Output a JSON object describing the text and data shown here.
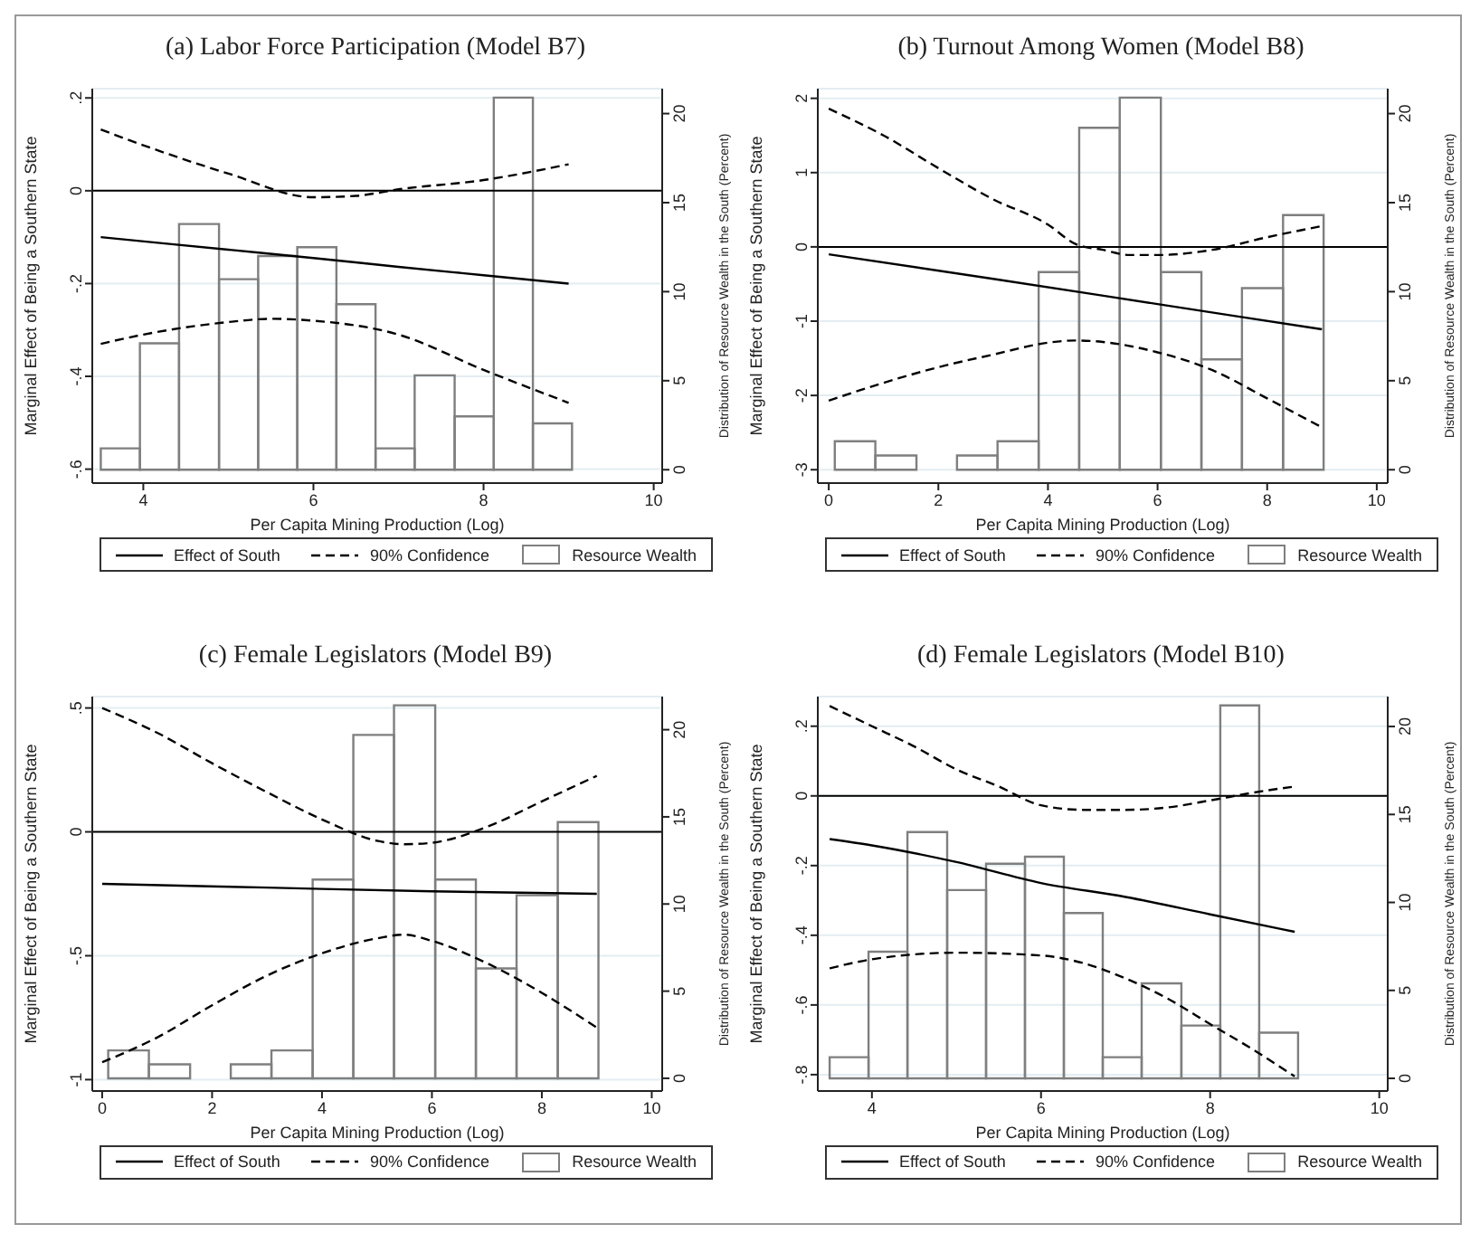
{
  "chart_data": [
    {
      "type": "line",
      "title": "(a) Labor Force Participation (Model B7)",
      "xlabel": "Per Capita Mining Production (Log)",
      "ylabel": "Marginal Effect of Being a Southern State",
      "y2label": "Distribution of Resource Wealth in the South (Percent)",
      "xlim": [
        3.4,
        10.1
      ],
      "xticks": [
        4,
        6,
        8,
        10
      ],
      "ylim": [
        -0.63,
        0.22
      ],
      "yticks": [
        {
          "value": -0.6,
          "label": "-.6"
        },
        {
          "value": -0.4,
          "label": "-.4"
        },
        {
          "value": -0.2,
          "label": "-.2"
        },
        0,
        {
          "value": 0.2,
          "label": ".2"
        }
      ],
      "y2lim": [
        -0.75,
        21.4
      ],
      "y2ticks": [
        0,
        5,
        10,
        15,
        20
      ],
      "grid": "y",
      "legend": "bottom",
      "marker": "none",
      "ref_lines": [
        {
          "axis": "y",
          "value": 0,
          "color": "#000000"
        }
      ],
      "series": [
        {
          "name": "Effect of South",
          "color": "#000000",
          "line_style": "solid",
          "x": [
            3.5,
            5,
            6,
            7,
            8,
            9
          ],
          "values": [
            -0.1,
            -0.127,
            -0.145,
            -0.164,
            -0.182,
            -0.2
          ]
        },
        {
          "name": "90% Confidence",
          "color": "#000000",
          "line_style": "dashed",
          "x": [
            3.5,
            4,
            5,
            6,
            6.5,
            7,
            8,
            9
          ],
          "values": [
            0.132,
            0.098,
            0.037,
            -0.014,
            -0.011,
            0.003,
            0.023,
            0.057
          ]
        },
        {
          "color": "#000000",
          "line_style": "dashed",
          "x": [
            3.5,
            4,
            5,
            5.5,
            6,
            7,
            8,
            9
          ],
          "values": [
            -0.33,
            -0.31,
            -0.283,
            -0.276,
            -0.28,
            -0.31,
            -0.386,
            -0.457
          ]
        },
        {
          "type": "histogram",
          "name": "Resource Wealth",
          "axis": "y2",
          "color": "#7f7f7f",
          "bins": [
            3.5,
            3.96,
            4.42,
            4.89,
            5.35,
            5.81,
            6.27,
            6.73,
            7.19,
            7.66,
            8.12,
            8.58,
            9.04
          ],
          "values": [
            1.2,
            7.1,
            13.8,
            10.7,
            12.0,
            12.5,
            9.3,
            1.2,
            5.3,
            3.0,
            20.9,
            2.6
          ]
        }
      ]
    },
    {
      "type": "line",
      "title": "(b) Turnout Among Women (Model B8)",
      "xlabel": "Per Capita Mining Production (Log)",
      "ylabel": "Marginal Effect of Being a Southern State",
      "y2label": "Distribution of Resource Wealth in the South (Percent)",
      "xlim": [
        -0.2,
        10.2
      ],
      "xticks": [
        0,
        2,
        4,
        6,
        8,
        10
      ],
      "ylim": [
        -3.18,
        2.13
      ],
      "yticks": [
        -3,
        -2,
        -1,
        0,
        1,
        2
      ],
      "y2lim": [
        -0.75,
        21.4
      ],
      "y2ticks": [
        0,
        5,
        10,
        15,
        20
      ],
      "grid": "y",
      "legend": "bottom",
      "marker": "none",
      "ref_lines": [
        {
          "axis": "y",
          "value": 0,
          "color": "#000000"
        }
      ],
      "series": [
        {
          "name": "Effect of South",
          "color": "#000000",
          "line_style": "solid",
          "x": [
            0,
            3,
            6,
            9
          ],
          "values": [
            -0.1,
            -0.43,
            -0.77,
            -1.11
          ]
        },
        {
          "name": "90% Confidence",
          "color": "#000000",
          "line_style": "dashed",
          "x": [
            0,
            1,
            2,
            3,
            4,
            4.5,
            5,
            5.5,
            6,
            7,
            8,
            9
          ],
          "values": [
            1.86,
            1.5,
            1.06,
            0.64,
            0.3,
            0.04,
            -0.04,
            -0.11,
            -0.11,
            -0.04,
            0.13,
            0.28
          ]
        },
        {
          "color": "#000000",
          "line_style": "dashed",
          "x": [
            0,
            1,
            2,
            3,
            4,
            4.5,
            5,
            6,
            7,
            8,
            9
          ],
          "values": [
            -2.07,
            -1.83,
            -1.62,
            -1.45,
            -1.29,
            -1.26,
            -1.28,
            -1.42,
            -1.66,
            -2.04,
            -2.43
          ]
        },
        {
          "type": "histogram",
          "name": "Resource Wealth",
          "axis": "y2",
          "color": "#7f7f7f",
          "bins": [
            0.11,
            0.85,
            1.6,
            2.34,
            3.08,
            3.83,
            4.57,
            5.31,
            6.06,
            6.8,
            7.54,
            8.29,
            9.03
          ],
          "values": [
            1.6,
            0.8,
            0,
            0.8,
            1.6,
            11.1,
            19.2,
            20.9,
            11.1,
            6.2,
            10.2,
            14.3
          ]
        }
      ]
    },
    {
      "type": "line",
      "title": "(c) Female Legislators (Model B9)",
      "xlabel": "Per Capita Mining Production (Log)",
      "ylabel": "Marginal Effect of Being a Southern State",
      "y2label": "Distribution of Resource Wealth in the South (Percent)",
      "xlim": [
        -0.18,
        10.19
      ],
      "xticks": [
        0,
        2,
        4,
        6,
        8,
        10
      ],
      "ylim": [
        -1.046,
        0.546
      ],
      "yticks": [
        -1,
        {
          "value": -0.5,
          "label": "-.5"
        },
        0,
        {
          "value": 0.5,
          "label": ".5"
        }
      ],
      "y2lim": [
        -0.73,
        21.9
      ],
      "y2ticks": [
        0,
        5,
        10,
        15,
        20
      ],
      "grid": "y",
      "legend": "bottom",
      "marker": "none",
      "ref_lines": [
        {
          "axis": "y",
          "value": 0,
          "color": "#000000"
        }
      ],
      "series": [
        {
          "name": "Effect of South",
          "color": "#000000",
          "line_style": "solid",
          "x": [
            0,
            3,
            6,
            9
          ],
          "values": [
            -0.21,
            -0.225,
            -0.24,
            -0.25
          ]
        },
        {
          "name": "90% Confidence",
          "color": "#000000",
          "line_style": "dashed",
          "x": [
            0,
            1,
            2,
            3,
            4,
            5,
            5.5,
            6,
            7,
            8,
            9
          ],
          "values": [
            0.5,
            0.4,
            0.277,
            0.16,
            0.05,
            -0.036,
            -0.05,
            -0.044,
            0.02,
            0.123,
            0.226
          ]
        },
        {
          "color": "#000000",
          "line_style": "dashed",
          "x": [
            0,
            1,
            2,
            3,
            4,
            5,
            5.5,
            6,
            7,
            8,
            9
          ],
          "values": [
            -0.93,
            -0.83,
            -0.7,
            -0.58,
            -0.49,
            -0.43,
            -0.415,
            -0.44,
            -0.53,
            -0.65,
            -0.79
          ]
        },
        {
          "type": "histogram",
          "name": "Resource Wealth",
          "axis": "y2",
          "color": "#7f7f7f",
          "bins": [
            0.11,
            0.85,
            1.6,
            2.34,
            3.08,
            3.83,
            4.57,
            5.31,
            6.06,
            6.8,
            7.54,
            8.29,
            9.03
          ],
          "values": [
            1.6,
            0.8,
            0,
            0.8,
            1.6,
            11.4,
            19.7,
            21.4,
            11.4,
            6.3,
            10.5,
            14.7
          ]
        }
      ]
    },
    {
      "type": "line",
      "title": "(d) Female Legislators (Model B10)",
      "xlabel": "Per Capita Mining Production (Log)",
      "ylabel": "Marginal Effect of Being a Southern State",
      "y2label": "Distribution of Resource Wealth in the South (Percent)",
      "xlim": [
        3.36,
        10.1
      ],
      "xticks": [
        4,
        6,
        8,
        10
      ],
      "ylim": [
        -0.847,
        0.285
      ],
      "yticks": [
        {
          "value": -0.8,
          "label": "-.8"
        },
        {
          "value": -0.6,
          "label": "-.6"
        },
        {
          "value": -0.4,
          "label": "-.4"
        },
        {
          "value": -0.2,
          "label": "-.2"
        },
        0,
        {
          "value": 0.2,
          "label": ".2"
        }
      ],
      "y2lim": [
        -0.72,
        21.7
      ],
      "y2ticks": [
        0,
        5,
        10,
        15,
        20
      ],
      "grid": "y",
      "legend": "bottom",
      "marker": "none",
      "ref_lines": [
        {
          "axis": "y",
          "value": 0,
          "color": "#000000"
        }
      ],
      "series": [
        {
          "name": "Effect of South",
          "color": "#000000",
          "line_style": "solid",
          "x": [
            3.5,
            4,
            5,
            6,
            7,
            8,
            9
          ],
          "values": [
            -0.124,
            -0.142,
            -0.19,
            -0.25,
            -0.29,
            -0.34,
            -0.39
          ]
        },
        {
          "name": "90% Confidence",
          "color": "#000000",
          "line_style": "dashed",
          "x": [
            3.5,
            4,
            4.5,
            5,
            5.5,
            6,
            6.5,
            7,
            7.5,
            8,
            8.5,
            9
          ],
          "values": [
            0.258,
            0.2,
            0.142,
            0.076,
            0.027,
            -0.027,
            -0.04,
            -0.04,
            -0.033,
            -0.013,
            0.009,
            0.027
          ]
        },
        {
          "color": "#000000",
          "line_style": "dashed",
          "x": [
            3.5,
            4,
            5,
            6,
            6.5,
            7,
            7.5,
            8,
            8.5,
            9
          ],
          "values": [
            -0.495,
            -0.469,
            -0.45,
            -0.458,
            -0.48,
            -0.524,
            -0.582,
            -0.655,
            -0.727,
            -0.805
          ]
        },
        {
          "type": "histogram",
          "name": "Resource Wealth",
          "axis": "y2",
          "color": "#7f7f7f",
          "bins": [
            3.5,
            3.96,
            4.42,
            4.89,
            5.35,
            5.81,
            6.27,
            6.73,
            7.19,
            7.66,
            8.12,
            8.58,
            9.04
          ],
          "values": [
            1.2,
            7.2,
            14.0,
            10.7,
            12.2,
            12.6,
            9.4,
            1.2,
            5.4,
            3.0,
            21.2,
            2.6
          ]
        }
      ]
    }
  ]
}
